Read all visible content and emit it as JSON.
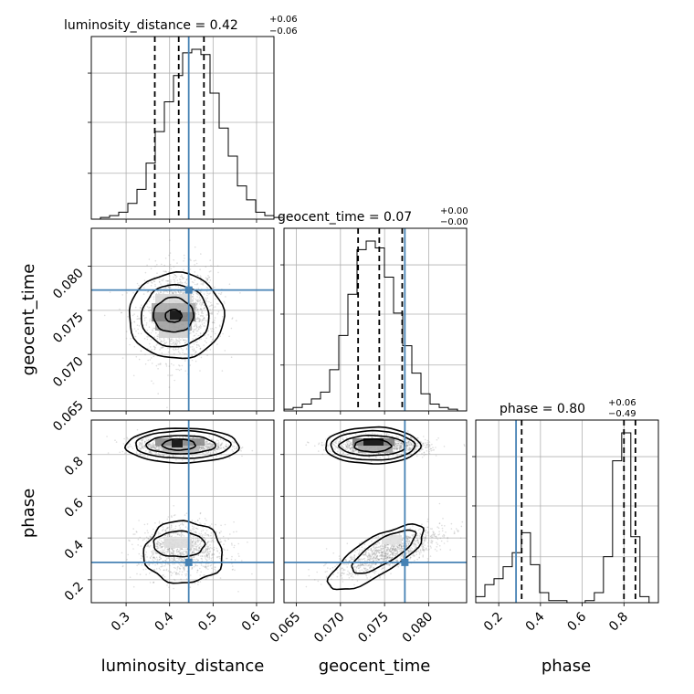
{
  "chart_data": {
    "type": "corner",
    "parameters": [
      "luminosity_distance",
      "geocent_time",
      "phase"
    ],
    "axes": {
      "luminosity_distance": {
        "range": [
          0.22,
          0.64
        ],
        "ticks": [
          "0.3",
          "0.4",
          "0.5",
          "0.6"
        ],
        "tick_values": [
          0.3,
          0.4,
          0.5,
          0.6
        ]
      },
      "geocent_time": {
        "range": [
          0.0636,
          0.0843
        ],
        "ticks": [
          "0.065",
          "0.070",
          "0.075",
          "0.080"
        ],
        "tick_values": [
          0.065,
          0.07,
          0.075,
          0.08
        ]
      },
      "phase": {
        "range": [
          0.09,
          0.965
        ],
        "ticks": [
          "0.2",
          "0.4",
          "0.6",
          "0.8"
        ],
        "tick_values": [
          0.2,
          0.4,
          0.6,
          0.8
        ]
      }
    },
    "titles": [
      {
        "param": "luminosity_distance",
        "label": "luminosity_distance = 0.42",
        "plus": "+0.06",
        "minus": "−0.06"
      },
      {
        "param": "geocent_time",
        "label": "geocent_time = 0.07",
        "plus": "+0.00",
        "minus": "−0.00"
      },
      {
        "param": "phase",
        "label": "phase = 0.80",
        "plus": "+0.06",
        "minus": "−0.49"
      }
    ],
    "truths": {
      "luminosity_distance": 0.444,
      "geocent_time": 0.0773,
      "phase": 0.283
    },
    "truth_color": "#4682b4",
    "quantiles": {
      "luminosity_distance": [
        0.366,
        0.421,
        0.479
      ],
      "geocent_time": [
        0.072,
        0.0744,
        0.077
      ],
      "phase": [
        0.31,
        0.8,
        0.855
      ]
    },
    "histograms": {
      "luminosity_distance": {
        "edges_start": 0.22,
        "bin_width": 0.021,
        "counts": [
          0,
          1,
          2,
          4,
          9,
          17,
          32,
          50,
          67,
          82,
          95,
          97,
          94,
          72,
          52,
          36,
          19,
          11,
          4,
          2,
          1
        ]
      },
      "geocent_time": {
        "edges_start": 0.0636,
        "bin_width": 0.001035,
        "counts": [
          1,
          2,
          4,
          7,
          11,
          24,
          44,
          68,
          94,
          99,
          95,
          78,
          57,
          38,
          22,
          10,
          4,
          2,
          1,
          0
        ]
      },
      "phase": {
        "edges_start": 0.09,
        "bin_width": 0.0437,
        "counts": [
          3,
          9,
          12,
          18,
          25,
          35,
          19,
          5,
          1,
          1,
          0,
          0,
          1,
          5,
          23,
          71,
          85,
          33,
          3,
          0
        ]
      }
    },
    "scatter_gray_color": "#888888",
    "colors": {
      "contour": "#000000",
      "grid": "#b0b0b0",
      "quantile": "#000000"
    }
  }
}
